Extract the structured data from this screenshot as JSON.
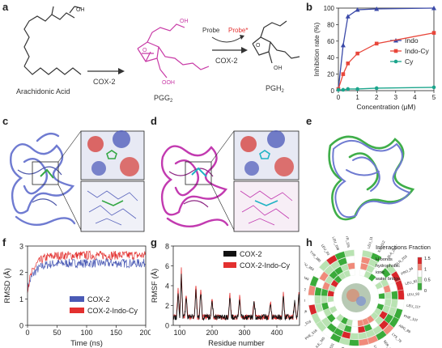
{
  "panels": {
    "a": "a",
    "b": "b",
    "c": "c",
    "d": "d",
    "e": "e",
    "f": "f",
    "g": "g",
    "h": "h"
  },
  "panel_a": {
    "substrate": "Arachidonic Acid",
    "intermediate": "PGG",
    "intermediate_sub": "2",
    "product": "PGH",
    "product_sub": "2",
    "enzyme1": "COX-2",
    "enzyme2": "COX-2",
    "probe": "Probe",
    "probe_star": "Probe*",
    "oh": "OH",
    "ooh": "OOH",
    "o": "O"
  },
  "colors": {
    "cox2": "#4a5ab5",
    "cox2_indo": "#e3302f",
    "indo": "#3a49a8",
    "indo_cy": "#e8463a",
    "cy": "#1ba58c",
    "protein_blue": "#6f7bd1",
    "protein_magenta": "#c23ab0",
    "protein_green": "#3fae49"
  },
  "chart_data": [
    {
      "panel": "b",
      "type": "line",
      "xlabel": "Concentration (μM)",
      "ylabel": "Inhibition rate (%)",
      "xlim": [
        0,
        5
      ],
      "ylim": [
        0,
        100
      ],
      "xticks": [
        "0",
        "1",
        "2",
        "3",
        "4",
        "5"
      ],
      "yticks": [
        "0",
        "20",
        "40",
        "60",
        "80",
        "100"
      ],
      "legend": "right",
      "series": [
        {
          "name": "Indo",
          "x": [
            0,
            0.25,
            0.5,
            1,
            2,
            5
          ],
          "y": [
            2,
            55,
            90,
            98,
            99,
            100
          ]
        },
        {
          "name": "Indo-Cy",
          "x": [
            0,
            0.25,
            0.5,
            1,
            2,
            5
          ],
          "y": [
            2,
            20,
            33,
            45,
            57,
            70
          ]
        },
        {
          "name": "Cy",
          "x": [
            0,
            0.25,
            0.5,
            1,
            2,
            5
          ],
          "y": [
            1,
            1,
            2,
            2,
            3,
            4
          ]
        }
      ]
    },
    {
      "panel": "f",
      "type": "line",
      "xlabel": "Time (ns)",
      "ylabel": "RMSD (Å)",
      "xlim": [
        0,
        200
      ],
      "ylim": [
        0,
        3
      ],
      "xticks": [
        "0",
        "50",
        "100",
        "150",
        "200"
      ],
      "yticks": [
        "0",
        "1",
        "2",
        "3"
      ],
      "legend": "bottom-right",
      "series": [
        {
          "name": "COX-2",
          "mean_plateau": 2.35
        },
        {
          "name": "COX-2-Indo-Cy",
          "mean_plateau": 2.65
        }
      ]
    },
    {
      "panel": "g",
      "type": "line",
      "xlabel": "Residue number",
      "ylabel": "RMSF (Å)",
      "xlim": [
        80,
        470
      ],
      "ylim": [
        0,
        8
      ],
      "xticks": [
        "100",
        "200",
        "300",
        "400"
      ],
      "yticks": [
        "0",
        "2",
        "4",
        "6",
        "8"
      ],
      "legend": "top-right",
      "series": [
        {
          "name": "COX-2"
        },
        {
          "name": "COX-2-Indo-Cy"
        }
      ]
    },
    {
      "panel": "h",
      "type": "heatmap",
      "title": "Interactions Fraction",
      "legend_items": [
        "H-bonds",
        "hydrophobic",
        "ionic",
        "water bridge"
      ],
      "colorbar_ticks": [
        "1.5",
        "1",
        "0.5",
        "0"
      ],
      "residues": [
        "LEU_117",
        "ILE_112",
        "ALA_202",
        "GLN_203",
        "PRO_84",
        "LEU_82",
        "LEU_93",
        "LEU_117",
        "PHE_107",
        "ARG_89",
        "LYS_79",
        "SER_112",
        "LYS_115",
        "TYR_355",
        "ARG_513",
        "VAL_523",
        "LEU_531",
        "ILE_345",
        "PHE_518",
        "ALA_516",
        "GLY_526",
        "SER_530",
        "LEU_352",
        "VAL_349",
        "LEU_359",
        "TYR_385",
        "LEU_93",
        "LEU_108",
        "TYR_115"
      ]
    }
  ]
}
